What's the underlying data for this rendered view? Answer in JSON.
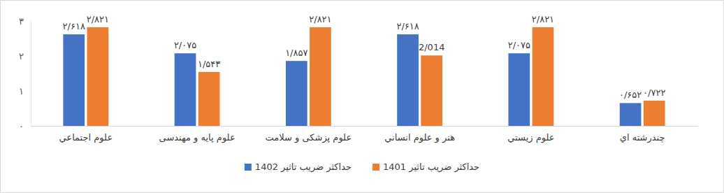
{
  "chart_data": {
    "type": "bar",
    "categories": [
      "علوم اجتماعي",
      "علوم پايه و مهندسی",
      "علوم پزشکی و سلامت",
      "هنر و علوم انساني",
      "علوم زيستي",
      "چندرشته اي"
    ],
    "series": [
      {
        "name": "حداکثر  ضریب تاثیر 1402",
        "color": "#4472c4",
        "values": [
          2.618,
          2.075,
          1.857,
          2.618,
          2.075,
          0.652
        ],
        "value_labels": [
          "۲/۶۱۸",
          "۲/۰۷۵",
          "۱/۸۵۷",
          "۲/۶۱۸",
          "۲/۰۷۵",
          "۰/۶۵۲"
        ]
      },
      {
        "name": "حداکثر  ضریب تاثیر 1401",
        "color": "#ed7d31",
        "values": [
          2.821,
          1.543,
          2.821,
          2.014,
          2.821,
          0.722
        ],
        "value_labels": [
          "۲/۸۲۱",
          "۱/۵۴۳",
          "۲/۸۲۱",
          "2/014",
          "۲/۸۲۱",
          "۰/۷۲۲"
        ]
      }
    ],
    "ylim": [
      0,
      3
    ],
    "yticks": [
      {
        "value": 0,
        "label": "۰"
      },
      {
        "value": 1,
        "label": "۱"
      },
      {
        "value": 2,
        "label": "۲"
      },
      {
        "value": 3,
        "label": "۳"
      }
    ],
    "grid": false,
    "data_labels": true,
    "legend": "bottom"
  }
}
